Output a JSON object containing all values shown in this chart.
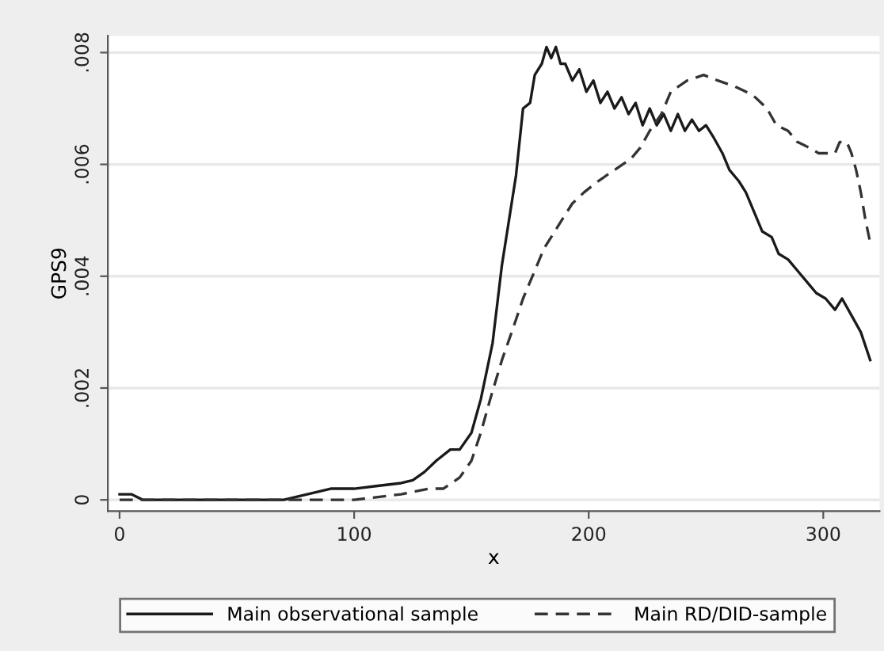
{
  "chart_data": {
    "type": "line",
    "xlabel": "x",
    "ylabel": "GPS9",
    "xlim": [
      -5,
      324
    ],
    "ylim": [
      -0.0002,
      0.0083
    ],
    "xticks": [
      0,
      100,
      200,
      300
    ],
    "yticks": [
      {
        "value": 0,
        "label": "0"
      },
      {
        "value": 0.002,
        "label": ".002"
      },
      {
        "value": 0.004,
        "label": ".004"
      },
      {
        "value": 0.006,
        "label": ".006"
      },
      {
        "value": 0.008,
        "label": ".008"
      }
    ],
    "grid": "y",
    "legend": "bottom",
    "marker": "none",
    "series": [
      {
        "name": "Main observational sample",
        "color": "#1a1a1a",
        "line_style": "solid",
        "x": [
          0,
          5,
          10,
          20,
          50,
          70,
          80,
          90,
          100,
          110,
          120,
          125,
          130,
          135,
          141,
          145,
          150,
          154,
          159,
          163,
          166,
          169,
          172,
          175,
          177,
          180,
          182,
          184,
          186,
          188,
          190,
          193,
          196,
          199,
          202,
          205,
          208,
          211,
          214,
          217,
          220,
          223,
          226,
          229,
          232,
          235,
          238,
          241,
          244,
          247,
          250,
          253,
          257,
          260,
          264,
          267,
          271,
          274,
          278,
          281,
          285,
          289,
          293,
          297,
          301,
          305,
          308,
          312,
          316,
          320
        ],
        "values": [
          0.0001,
          0.0001,
          0.0,
          0.0,
          0.0,
          0.0,
          0.0001,
          0.0002,
          0.0002,
          0.00025,
          0.0003,
          0.00035,
          0.0005,
          0.0007,
          0.0009,
          0.0009,
          0.0012,
          0.0018,
          0.0028,
          0.0042,
          0.005,
          0.0058,
          0.007,
          0.0071,
          0.0076,
          0.0078,
          0.0081,
          0.0079,
          0.0081,
          0.0078,
          0.0078,
          0.0075,
          0.0077,
          0.0073,
          0.0075,
          0.0071,
          0.0073,
          0.007,
          0.0072,
          0.0069,
          0.0071,
          0.0067,
          0.007,
          0.0067,
          0.0069,
          0.0066,
          0.0069,
          0.0066,
          0.0068,
          0.0066,
          0.0067,
          0.0065,
          0.0062,
          0.0059,
          0.0057,
          0.0055,
          0.0051,
          0.0048,
          0.0047,
          0.0044,
          0.0043,
          0.0041,
          0.0039,
          0.0037,
          0.0036,
          0.0034,
          0.0036,
          0.0033,
          0.003,
          0.0025
        ]
      },
      {
        "name": "Main RD/DID-sample",
        "color": "#333333",
        "line_style": "dashed",
        "x": [
          0,
          20,
          50,
          70,
          100,
          120,
          132,
          138,
          145,
          150,
          154,
          158,
          163,
          168,
          172,
          177,
          181,
          187,
          193,
          198,
          204,
          211,
          218,
          222,
          226,
          231,
          235,
          242,
          249,
          255,
          262,
          267,
          271,
          276,
          280,
          285,
          289,
          294,
          298,
          302,
          305,
          307,
          310,
          312,
          314,
          316,
          318,
          320
        ],
        "values": [
          0.0,
          0.0,
          0.0,
          0.0,
          0.0,
          0.0001,
          0.0002,
          0.0002,
          0.0004,
          0.0007,
          0.0012,
          0.0018,
          0.0025,
          0.0031,
          0.0036,
          0.0041,
          0.0045,
          0.0049,
          0.0053,
          0.0055,
          0.0057,
          0.0059,
          0.0061,
          0.0063,
          0.0066,
          0.0069,
          0.0073,
          0.0075,
          0.0076,
          0.0075,
          0.0074,
          0.0073,
          0.0072,
          0.007,
          0.0067,
          0.0066,
          0.0064,
          0.0063,
          0.0062,
          0.0062,
          0.0062,
          0.0064,
          0.0064,
          0.0062,
          0.0059,
          0.0055,
          0.005,
          0.0046
        ]
      }
    ]
  }
}
